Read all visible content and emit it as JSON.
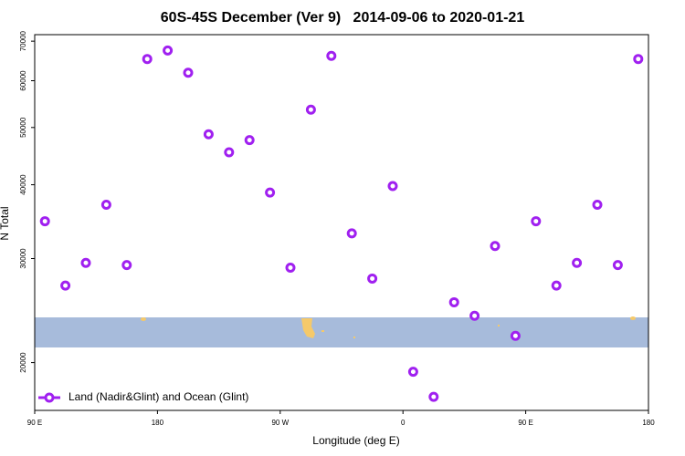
{
  "chart_data": {
    "type": "scatter",
    "title": "60S-45S December (Ver 9)   2014-09-06 to 2020-01-21",
    "x_label": "Longitude (deg E)",
    "y_label": "N Total",
    "y_scale": "log",
    "xlim": [
      90,
      540
    ],
    "ylim": [
      16600,
      71800
    ],
    "xticks": [
      {
        "value": 90,
        "label": "90 E"
      },
      180,
      {
        "value": 270,
        "label": "90 W"
      },
      {
        "value": 360,
        "label": "0"
      },
      {
        "value": 450,
        "label": "90 E"
      },
      {
        "value": 540,
        "label": "180"
      }
    ],
    "yticks": [
      20000,
      30000,
      40000,
      50000,
      60000,
      70000
    ],
    "legend": "bottom-left",
    "series": [
      {
        "name": "Land (Nadir&Glint) and Ocean (Glint)",
        "color": "#a020f0",
        "x": [
          97.5,
          112.5,
          127.5,
          142.5,
          157.5,
          172.5,
          187.5,
          202.5,
          217.5,
          232.5,
          247.5,
          262.5,
          277.5,
          292.5,
          307.5,
          322.5,
          337.5,
          352.5,
          367.5,
          382.5,
          397.5,
          412.5,
          427.5,
          442.5,
          457.5,
          472.5,
          487.5,
          502.5,
          517.5,
          532.5
        ],
        "values": [
          34700,
          27000,
          29500,
          37000,
          29250,
          65300,
          67500,
          61900,
          48700,
          45400,
          47600,
          38800,
          28950,
          53600,
          66100,
          33100,
          27750,
          39800,
          19300,
          17500,
          25300,
          24000,
          31500,
          22200,
          34700,
          27000,
          29500,
          37000,
          29250,
          65300
        ]
      }
    ]
  }
}
